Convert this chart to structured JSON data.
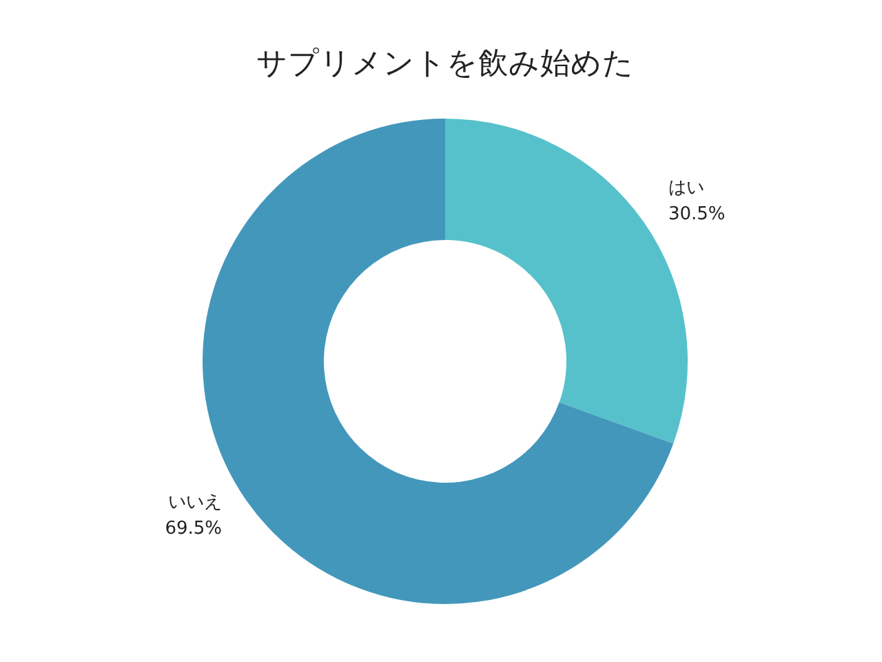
{
  "chart_data": {
    "type": "donut",
    "title": "サプリメントを飲み始めた",
    "categories": [
      "はい",
      "いいえ"
    ],
    "values": [
      30.5,
      69.5
    ],
    "colors": [
      "#56c1cb",
      "#4397bb"
    ],
    "value_labels": [
      "30.5%",
      "69.5%"
    ],
    "legend": false
  }
}
